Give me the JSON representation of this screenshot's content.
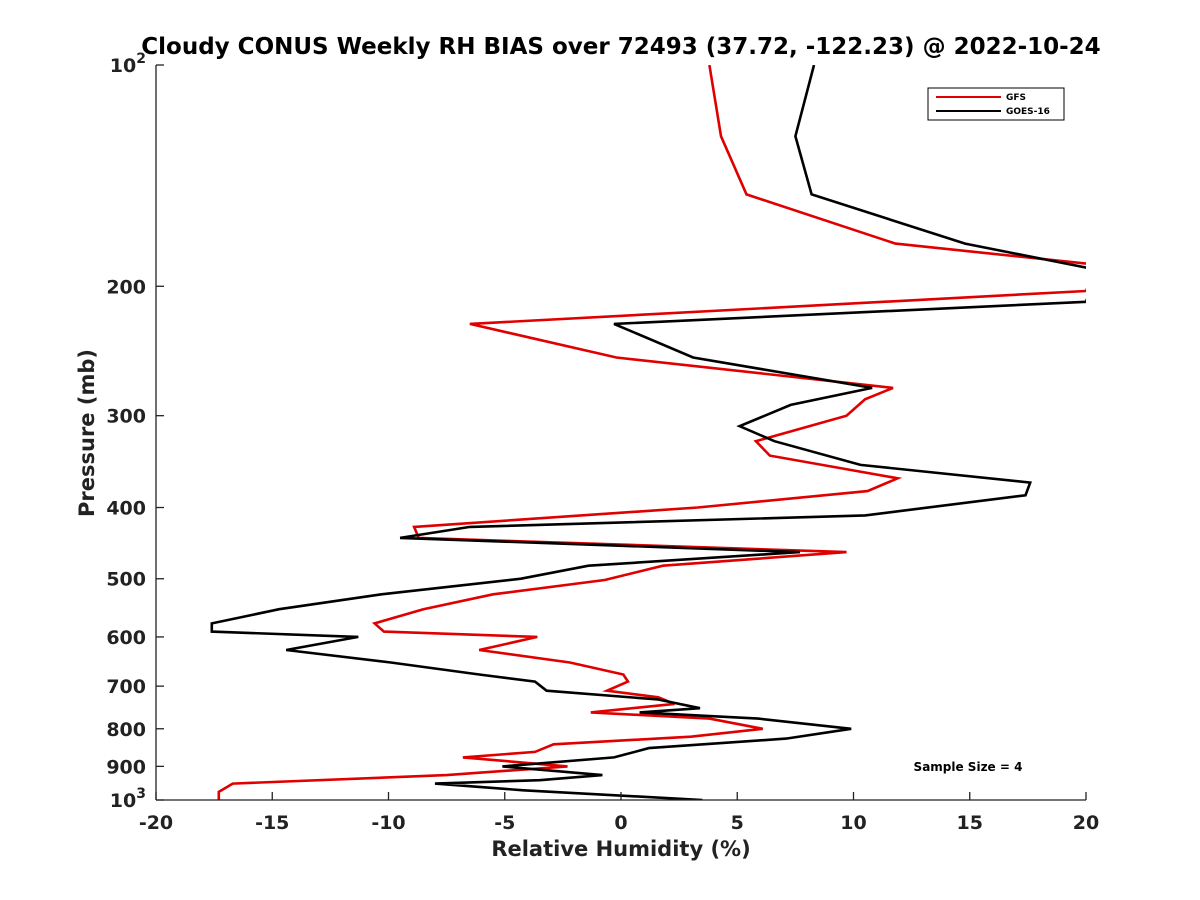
{
  "chart_data": {
    "type": "line",
    "title": "Cloudy CONUS Weekly RH BIAS over 72493 (37.72, -122.23) @ 2022-10-24",
    "xlabel": "Relative Humidity (%)",
    "ylabel": "Pressure (mb)",
    "xlim": [
      -20,
      20
    ],
    "ylim": [
      100,
      1000
    ],
    "y_scale": "log",
    "y_direction": "reversed",
    "grid": false,
    "legend_position": "top-right",
    "annotation": "Sample Size = 4",
    "x_ticks": [
      {
        "value": -20,
        "label": "-20"
      },
      {
        "value": -15,
        "label": "-15"
      },
      {
        "value": -10,
        "label": "-10"
      },
      {
        "value": -5,
        "label": "-5"
      },
      {
        "value": 0,
        "label": "0"
      },
      {
        "value": 5,
        "label": "5"
      },
      {
        "value": 10,
        "label": "10"
      },
      {
        "value": 15,
        "label": "15"
      },
      {
        "value": 20,
        "label": "20"
      }
    ],
    "y_ticks": [
      {
        "value": 100,
        "label": "10",
        "sup": "2"
      },
      {
        "value": 200,
        "label": "200"
      },
      {
        "value": 300,
        "label": "300"
      },
      {
        "value": 400,
        "label": "400"
      },
      {
        "value": 500,
        "label": "500"
      },
      {
        "value": 600,
        "label": "600"
      },
      {
        "value": 700,
        "label": "700"
      },
      {
        "value": 800,
        "label": "800"
      },
      {
        "value": 900,
        "label": "900"
      },
      {
        "value": 1000,
        "label": "10",
        "sup": "3"
      }
    ],
    "series": [
      {
        "name": "GFS",
        "color": "#e00000",
        "points": [
          {
            "x": 3.8,
            "p": 100
          },
          {
            "x": 4.3,
            "p": 125
          },
          {
            "x": 5.4,
            "p": 150
          },
          {
            "x": 11.8,
            "p": 175
          },
          {
            "x": 20.5,
            "p": 187
          },
          {
            "x": 20.0,
            "p": 203
          },
          {
            "x": 20.0,
            "p": 203
          },
          {
            "x": -6.5,
            "p": 225
          },
          {
            "x": -0.2,
            "p": 250
          },
          {
            "x": 11.7,
            "p": 275
          },
          {
            "x": 10.5,
            "p": 285
          },
          {
            "x": 9.7,
            "p": 300
          },
          {
            "x": 5.8,
            "p": 325
          },
          {
            "x": 6.4,
            "p": 340
          },
          {
            "x": 11.9,
            "p": 365
          },
          {
            "x": 10.6,
            "p": 380
          },
          {
            "x": 3.3,
            "p": 400
          },
          {
            "x": -8.9,
            "p": 425
          },
          {
            "x": -8.7,
            "p": 440
          },
          {
            "x": 9.7,
            "p": 460
          },
          {
            "x": 1.8,
            "p": 480
          },
          {
            "x": -0.7,
            "p": 502
          },
          {
            "x": -5.5,
            "p": 525
          },
          {
            "x": -8.5,
            "p": 550
          },
          {
            "x": -10.6,
            "p": 575
          },
          {
            "x": -10.2,
            "p": 590
          },
          {
            "x": -3.6,
            "p": 600
          },
          {
            "x": -6.1,
            "p": 625
          },
          {
            "x": -2.2,
            "p": 650
          },
          {
            "x": 0.1,
            "p": 675
          },
          {
            "x": 0.3,
            "p": 690
          },
          {
            "x": -0.6,
            "p": 710
          },
          {
            "x": 1.6,
            "p": 725
          },
          {
            "x": 2.3,
            "p": 740
          },
          {
            "x": -1.3,
            "p": 760
          },
          {
            "x": 3.8,
            "p": 775
          },
          {
            "x": 6.1,
            "p": 800
          },
          {
            "x": 3.0,
            "p": 820
          },
          {
            "x": -2.9,
            "p": 840
          },
          {
            "x": -3.7,
            "p": 860
          },
          {
            "x": -6.8,
            "p": 875
          },
          {
            "x": -2.3,
            "p": 900
          },
          {
            "x": -7.5,
            "p": 925
          },
          {
            "x": -16.7,
            "p": 950
          },
          {
            "x": -17.3,
            "p": 975
          },
          {
            "x": -17.3,
            "p": 1000
          }
        ]
      },
      {
        "name": "GOES-16",
        "color": "#000000",
        "points": [
          {
            "x": 8.3,
            "p": 100
          },
          {
            "x": 7.5,
            "p": 125
          },
          {
            "x": 8.2,
            "p": 150
          },
          {
            "x": 14.8,
            "p": 175
          },
          {
            "x": 20.5,
            "p": 190
          },
          {
            "x": 20.0,
            "p": 210
          },
          {
            "x": -0.3,
            "p": 225
          },
          {
            "x": 3.1,
            "p": 250
          },
          {
            "x": 10.8,
            "p": 275
          },
          {
            "x": 7.3,
            "p": 290
          },
          {
            "x": 5.1,
            "p": 310
          },
          {
            "x": 6.6,
            "p": 325
          },
          {
            "x": 10.3,
            "p": 350
          },
          {
            "x": 17.6,
            "p": 370
          },
          {
            "x": 17.4,
            "p": 385
          },
          {
            "x": 10.5,
            "p": 410
          },
          {
            "x": -6.5,
            "p": 425
          },
          {
            "x": -9.5,
            "p": 440
          },
          {
            "x": 7.7,
            "p": 460
          },
          {
            "x": -1.4,
            "p": 480
          },
          {
            "x": -4.3,
            "p": 500
          },
          {
            "x": -10.3,
            "p": 525
          },
          {
            "x": -14.7,
            "p": 550
          },
          {
            "x": -17.6,
            "p": 575
          },
          {
            "x": -17.6,
            "p": 590
          },
          {
            "x": -11.3,
            "p": 600
          },
          {
            "x": -14.4,
            "p": 625
          },
          {
            "x": -9.9,
            "p": 650
          },
          {
            "x": -6.1,
            "p": 675
          },
          {
            "x": -3.7,
            "p": 690
          },
          {
            "x": -3.2,
            "p": 710
          },
          {
            "x": 1.6,
            "p": 730
          },
          {
            "x": 3.4,
            "p": 750
          },
          {
            "x": 0.8,
            "p": 760
          },
          {
            "x": 5.9,
            "p": 775
          },
          {
            "x": 9.9,
            "p": 800
          },
          {
            "x": 7.1,
            "p": 825
          },
          {
            "x": 1.2,
            "p": 850
          },
          {
            "x": -0.3,
            "p": 875
          },
          {
            "x": -5.1,
            "p": 900
          },
          {
            "x": -0.8,
            "p": 925
          },
          {
            "x": -3.5,
            "p": 940
          },
          {
            "x": -8.0,
            "p": 950
          },
          {
            "x": -4.2,
            "p": 970
          },
          {
            "x": 3.5,
            "p": 1000
          }
        ]
      }
    ]
  }
}
